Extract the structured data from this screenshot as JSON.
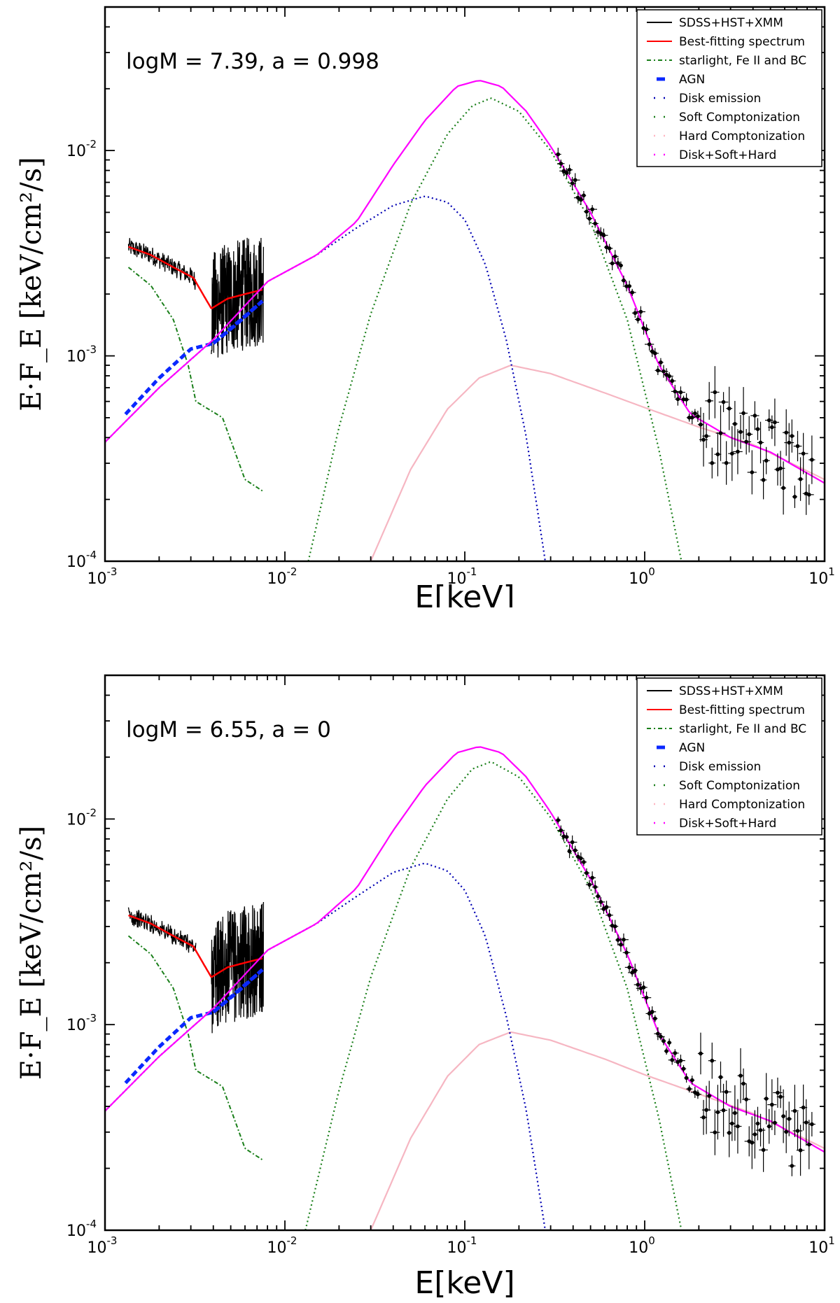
{
  "figure": {
    "panels": [
      {
        "annotation": "logM = 7.39, a = 0.998",
        "ylabel": "E·F_E [keV/cm²/s]",
        "xlabel": "E[keV]"
      },
      {
        "annotation": "logM = 6.55, a = 0",
        "ylabel": "E·F_E [keV/cm²/s]",
        "xlabel": "E[keV]"
      }
    ],
    "xticks": [
      {
        "base": "10",
        "exp": "-3"
      },
      {
        "base": "10",
        "exp": "-2"
      },
      {
        "base": "10",
        "exp": "-1"
      },
      {
        "base": "10",
        "exp": "0"
      },
      {
        "base": "10",
        "exp": "1"
      }
    ],
    "yticks": [
      {
        "base": "10",
        "exp": "-4"
      },
      {
        "base": "10",
        "exp": "-3"
      },
      {
        "base": "10",
        "exp": "-2"
      }
    ],
    "legend": [
      {
        "label": "SDSS+HST+XMM",
        "color": "#000000",
        "style": "solid"
      },
      {
        "label": "Best-fitting spectrum",
        "color": "#ff0000",
        "style": "solid"
      },
      {
        "label": "starlight, Fe II and BC",
        "color": "#1a7f1a",
        "style": "dashdot"
      },
      {
        "label": "AGN",
        "color": "#0a28ff",
        "style": "thickdash"
      },
      {
        "label": "Disk emission",
        "color": "#0000b3",
        "style": "dotted"
      },
      {
        "label": "Soft Comptonization",
        "color": "#1a7f1a",
        "style": "dotted"
      },
      {
        "label": "Hard Comptonization",
        "color": "#ffb6c1",
        "style": "dotted"
      },
      {
        "label": "Disk+Soft+Hard",
        "color": "#ff00ff",
        "style": "dotted"
      }
    ]
  },
  "chart_data": [
    {
      "type": "line",
      "title": "logM = 7.39, a = 0.998",
      "xlabel": "E[keV]",
      "ylabel": "E·F_E [keV/cm²/s]",
      "xscale": "log",
      "yscale": "log",
      "xlim": [
        0.001,
        10
      ],
      "ylim": [
        0.0001,
        0.05
      ],
      "series": [
        {
          "name": "Disk emission",
          "x": [
            0.001,
            0.002,
            0.004,
            0.008,
            0.015,
            0.025,
            0.04,
            0.06,
            0.08,
            0.1,
            0.13,
            0.17,
            0.22,
            0.28
          ],
          "y": [
            0.00038,
            0.0007,
            0.0012,
            0.0023,
            0.0031,
            0.0042,
            0.0054,
            0.006,
            0.0056,
            0.0046,
            0.0028,
            0.0012,
            0.0004,
            0.0001
          ]
        },
        {
          "name": "Soft Comptonization",
          "x": [
            0.0135,
            0.02,
            0.03,
            0.05,
            0.08,
            0.11,
            0.14,
            0.2,
            0.3,
            0.5,
            0.8,
            1.2,
            1.6
          ],
          "y": [
            0.0001,
            0.00045,
            0.0016,
            0.0055,
            0.012,
            0.0165,
            0.018,
            0.0155,
            0.01,
            0.0045,
            0.0015,
            0.00035,
            0.0001
          ]
        },
        {
          "name": "Hard Comptonization",
          "x": [
            0.03,
            0.05,
            0.08,
            0.12,
            0.18,
            0.3,
            0.6,
            1.0,
            2.0,
            4.0,
            10.0
          ],
          "y": [
            0.0001,
            0.00028,
            0.00055,
            0.00078,
            0.0009,
            0.00082,
            0.00066,
            0.00056,
            0.00045,
            0.00037,
            0.00025
          ]
        },
        {
          "name": "Disk+Soft+Hard",
          "x": [
            0.001,
            0.002,
            0.004,
            0.008,
            0.015,
            0.025,
            0.04,
            0.06,
            0.09,
            0.12,
            0.16,
            0.22,
            0.3,
            0.5,
            0.8,
            1.2,
            1.8,
            3.0,
            5.0,
            10.0
          ],
          "y": [
            0.00038,
            0.0007,
            0.0012,
            0.0023,
            0.0031,
            0.0045,
            0.0085,
            0.014,
            0.0205,
            0.022,
            0.0205,
            0.0155,
            0.0105,
            0.005,
            0.0022,
            0.0009,
            0.00052,
            0.0004,
            0.00034,
            0.00024
          ]
        },
        {
          "name": "AGN",
          "x": [
            0.0013,
            0.002,
            0.003,
            0.004,
            0.0055,
            0.0075
          ],
          "y": [
            0.00052,
            0.00078,
            0.00108,
            0.00115,
            0.00145,
            0.00185
          ]
        },
        {
          "name": "Best-fitting spectrum",
          "x": [
            0.00135,
            0.0018,
            0.0024,
            0.0031,
            0.0039,
            0.0048,
            0.006,
            0.0075
          ],
          "y": [
            0.0034,
            0.0031,
            0.0027,
            0.0024,
            0.0017,
            0.0019,
            0.002,
            0.0021
          ]
        },
        {
          "name": "starlight, Fe II and BC",
          "x": [
            0.00135,
            0.0018,
            0.0024,
            0.0029,
            0.0032,
            0.0045,
            0.006,
            0.0075
          ],
          "y": [
            0.0027,
            0.0022,
            0.0015,
            0.0009,
            0.0006,
            0.0005,
            0.00025,
            0.00022
          ]
        }
      ]
    },
    {
      "type": "line",
      "title": "logM = 6.55, a = 0",
      "xlabel": "E[keV]",
      "ylabel": "E·F_E [keV/cm²/s]",
      "xscale": "log",
      "yscale": "log",
      "xlim": [
        0.001,
        10
      ],
      "ylim": [
        0.0001,
        0.05
      ],
      "series": [
        {
          "name": "Disk emission",
          "x": [
            0.001,
            0.002,
            0.004,
            0.008,
            0.015,
            0.025,
            0.04,
            0.06,
            0.08,
            0.1,
            0.13,
            0.17,
            0.22,
            0.28
          ],
          "y": [
            0.00038,
            0.0007,
            0.0012,
            0.0023,
            0.0031,
            0.0042,
            0.0055,
            0.0061,
            0.0056,
            0.0045,
            0.0027,
            0.0011,
            0.00038,
            0.0001
          ]
        },
        {
          "name": "Soft Comptonization",
          "x": [
            0.013,
            0.02,
            0.03,
            0.05,
            0.08,
            0.11,
            0.14,
            0.2,
            0.3,
            0.5,
            0.8,
            1.2,
            1.6
          ],
          "y": [
            0.0001,
            0.00048,
            0.0017,
            0.0058,
            0.0125,
            0.0175,
            0.019,
            0.016,
            0.0102,
            0.0046,
            0.0015,
            0.00035,
            0.0001
          ]
        },
        {
          "name": "Hard Comptonization",
          "x": [
            0.03,
            0.05,
            0.08,
            0.12,
            0.18,
            0.3,
            0.6,
            1.0,
            2.0,
            4.0,
            10.0
          ],
          "y": [
            0.0001,
            0.00028,
            0.00056,
            0.0008,
            0.00092,
            0.00084,
            0.00068,
            0.00057,
            0.00046,
            0.00037,
            0.00025
          ]
        },
        {
          "name": "Disk+Soft+Hard",
          "x": [
            0.001,
            0.002,
            0.004,
            0.008,
            0.015,
            0.025,
            0.04,
            0.06,
            0.09,
            0.12,
            0.16,
            0.22,
            0.3,
            0.5,
            0.8,
            1.2,
            1.8,
            3.0,
            5.0,
            10.0
          ],
          "y": [
            0.00038,
            0.0007,
            0.0012,
            0.0023,
            0.0031,
            0.0046,
            0.0088,
            0.0145,
            0.021,
            0.0225,
            0.021,
            0.016,
            0.0108,
            0.0051,
            0.0022,
            0.0009,
            0.00052,
            0.0004,
            0.00034,
            0.00024
          ]
        },
        {
          "name": "AGN",
          "x": [
            0.0013,
            0.002,
            0.003,
            0.004,
            0.0055,
            0.0075
          ],
          "y": [
            0.00052,
            0.00078,
            0.00108,
            0.00115,
            0.00145,
            0.00185
          ]
        },
        {
          "name": "Best-fitting spectrum",
          "x": [
            0.00135,
            0.0018,
            0.0024,
            0.0031,
            0.0039,
            0.0048,
            0.006,
            0.0075
          ],
          "y": [
            0.0034,
            0.0031,
            0.0027,
            0.0024,
            0.0017,
            0.0019,
            0.002,
            0.0021
          ]
        },
        {
          "name": "starlight, Fe II and BC",
          "x": [
            0.00135,
            0.0018,
            0.0024,
            0.0029,
            0.0032,
            0.0045,
            0.006,
            0.0075
          ],
          "y": [
            0.0027,
            0.0022,
            0.0015,
            0.0009,
            0.0006,
            0.0005,
            0.00025,
            0.00022
          ]
        }
      ]
    }
  ]
}
